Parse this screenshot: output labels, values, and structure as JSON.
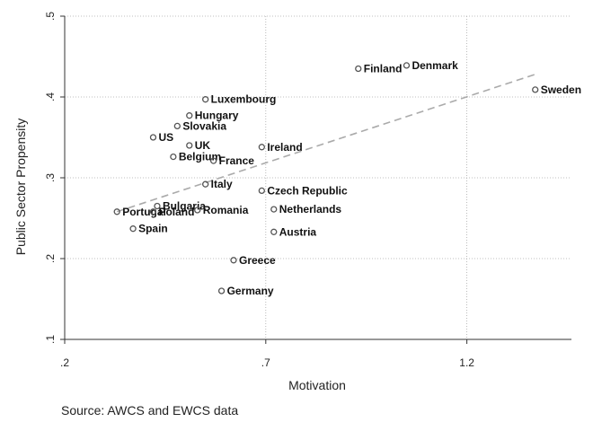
{
  "chart_data": {
    "type": "scatter",
    "xlabel": "Motivation",
    "ylabel": "Public Sector Propensity",
    "xlim": [
      0.2,
      1.46
    ],
    "ylim": [
      0.1,
      0.5
    ],
    "x_ticks": [
      0.2,
      0.7,
      1.2
    ],
    "x_tick_labels": [
      ".2",
      ".7",
      "1.2"
    ],
    "y_ticks": [
      0.1,
      0.2,
      0.3,
      0.4,
      0.5
    ],
    "y_tick_labels": [
      ".1",
      ".2",
      ".3",
      ".4",
      ".5"
    ],
    "grid": true,
    "source": "Source: AWCS and EWCS data",
    "colors": {
      "points": "#555555",
      "fit_line": "#aaaaaa",
      "grid": "#aaaaaa"
    },
    "fit_line": {
      "style": "dashed",
      "x": [
        0.33,
        1.37
      ],
      "y": [
        0.258,
        0.428
      ]
    },
    "points": [
      {
        "label": "Finland",
        "x": 0.93,
        "y": 0.435
      },
      {
        "label": "Denmark",
        "x": 1.05,
        "y": 0.439
      },
      {
        "label": "Sweden",
        "x": 1.37,
        "y": 0.409
      },
      {
        "label": "Luxembourg",
        "x": 0.55,
        "y": 0.397
      },
      {
        "label": "Hungary",
        "x": 0.51,
        "y": 0.377
      },
      {
        "label": "Slovakia",
        "x": 0.48,
        "y": 0.364
      },
      {
        "label": "US",
        "x": 0.42,
        "y": 0.35
      },
      {
        "label": "UK",
        "x": 0.51,
        "y": 0.34
      },
      {
        "label": "Ireland",
        "x": 0.69,
        "y": 0.338
      },
      {
        "label": "Belgium",
        "x": 0.47,
        "y": 0.326
      },
      {
        "label": "France",
        "x": 0.57,
        "y": 0.321
      },
      {
        "label": "Italy",
        "x": 0.55,
        "y": 0.292
      },
      {
        "label": "Czech Republic",
        "x": 0.69,
        "y": 0.284
      },
      {
        "label": "Bulgaria",
        "x": 0.43,
        "y": 0.265
      },
      {
        "label": "Netherlands",
        "x": 0.72,
        "y": 0.261
      },
      {
        "label": "Portugal",
        "x": 0.33,
        "y": 0.258
      },
      {
        "label": "Poland",
        "x": 0.42,
        "y": 0.258
      },
      {
        "label": "Romania",
        "x": 0.53,
        "y": 0.26
      },
      {
        "label": "Spain",
        "x": 0.37,
        "y": 0.237
      },
      {
        "label": "Austria",
        "x": 0.72,
        "y": 0.233
      },
      {
        "label": "Greece",
        "x": 0.62,
        "y": 0.198
      },
      {
        "label": "Germany",
        "x": 0.59,
        "y": 0.16
      }
    ]
  }
}
